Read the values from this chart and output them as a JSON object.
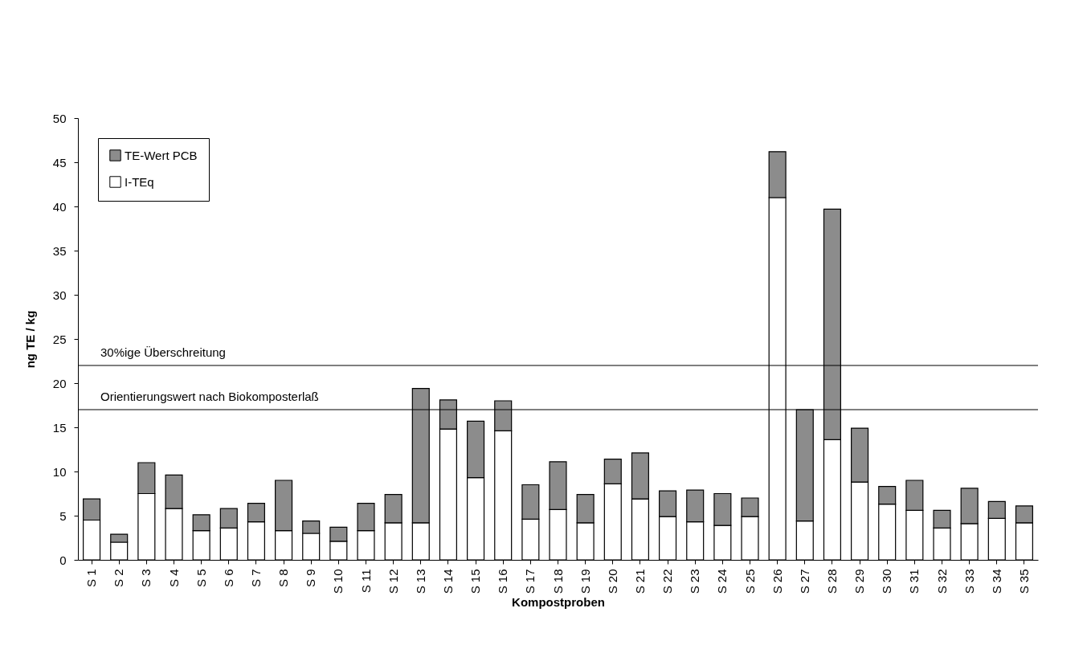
{
  "chart_data": {
    "type": "bar",
    "stacked": true,
    "xlabel": "Kompostproben",
    "ylabel": "ng TE / kg",
    "categories": [
      "S 1",
      "S 2",
      "S 3",
      "S 4",
      "S 5",
      "S 6",
      "S 7",
      "S 8",
      "S 9",
      "S 10",
      "S 11",
      "S 12",
      "S 13",
      "S 14",
      "S 15",
      "S 16",
      "S 17",
      "S 18",
      "S 19",
      "S 20",
      "S 21",
      "S 22",
      "S 23",
      "S 24",
      "S 25",
      "S 26",
      "S 27",
      "S 28",
      "S 29",
      "S 30",
      "S 31",
      "S 32",
      "S 33",
      "S 34",
      "S 35"
    ],
    "series": [
      {
        "name": "I-TEq",
        "color": "#ffffff",
        "values": [
          4.5,
          2.0,
          7.5,
          5.8,
          3.3,
          3.6,
          4.3,
          3.3,
          3.0,
          2.1,
          3.3,
          4.2,
          4.2,
          14.8,
          9.3,
          14.6,
          4.6,
          5.7,
          4.2,
          8.6,
          6.9,
          4.9,
          4.3,
          3.9,
          4.9,
          41.0,
          4.4,
          13.6,
          8.8,
          6.3,
          5.6,
          3.6,
          4.1,
          4.7,
          4.2
        ]
      },
      {
        "name": "TE-Wert PCB",
        "color": "#8c8c8c",
        "values": [
          2.4,
          0.9,
          3.5,
          3.8,
          1.8,
          2.2,
          2.1,
          5.7,
          1.4,
          1.6,
          3.1,
          3.2,
          15.2,
          3.3,
          6.4,
          3.4,
          3.9,
          5.4,
          3.2,
          2.8,
          5.2,
          2.9,
          3.6,
          3.6,
          2.1,
          5.2,
          12.6,
          26.1,
          6.1,
          2.0,
          3.4,
          2.0,
          4.0,
          1.9,
          1.9
        ]
      }
    ],
    "ylim": [
      0,
      50
    ],
    "yticks": [
      0,
      5,
      10,
      15,
      20,
      25,
      30,
      35,
      40,
      45,
      50
    ],
    "grid": false,
    "legend": "top left",
    "ref_lines": [
      {
        "axis": "y",
        "value": 22,
        "label": "30%ige Überschreitung"
      },
      {
        "axis": "y",
        "value": 17,
        "label": "Orientierungswert nach Biokomposterlaß"
      }
    ]
  }
}
